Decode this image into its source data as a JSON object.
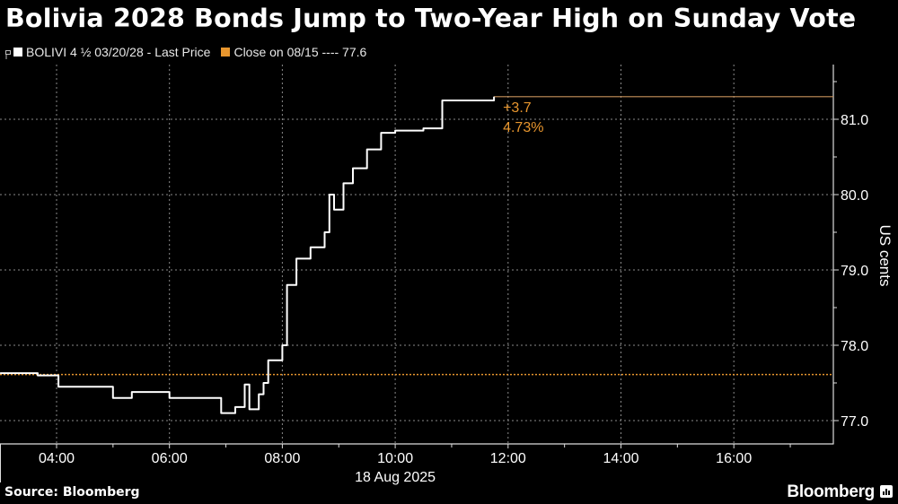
{
  "header": {
    "title": "Bolivia 2028 Bonds Jump to Two-Year High on Sunday Vote"
  },
  "legend": {
    "items": [
      {
        "label": "BOLIVI 4 ½  03/20/28 - Last Price",
        "color": "#ffffff"
      },
      {
        "label": "Close on 08/15 ---- 77.6",
        "color": "#e8962e"
      }
    ]
  },
  "annotation": {
    "change": "+3.7",
    "change_pct": "4.73%",
    "color": "#e8962e"
  },
  "footer": {
    "source": "Source: Bloomberg",
    "brand": "Bloomberg"
  },
  "colors": {
    "background": "#000000",
    "line": "#ffffff",
    "accent": "#e8962e",
    "grid": "#8a8a8a"
  },
  "chart_data": {
    "type": "line",
    "title": "Bolivia 2028 Bonds Jump to Two-Year High on Sunday Vote",
    "xlabel": "18 Aug 2025",
    "ylabel": "US cents",
    "x_tick_labels": [
      "04:00",
      "06:00",
      "08:00",
      "10:00",
      "12:00",
      "14:00",
      "16:00"
    ],
    "y_tick_labels": [
      "77.0",
      "78.0",
      "79.0",
      "80.0",
      "81.0"
    ],
    "ylim": [
      76.8,
      81.45
    ],
    "xlim": [
      "03:00",
      "17:45"
    ],
    "grid": true,
    "legend_position": "top-left",
    "reference_line": {
      "label": "Close on 08/15",
      "value": 77.6
    },
    "last_value": 81.3,
    "change": 3.7,
    "change_pct": 4.73,
    "series": [
      {
        "name": "BOLIVI 4 1/2 03/20/28 - Last Price",
        "x": [
          "03:00",
          "03:40",
          "04:00",
          "04:02",
          "04:30",
          "05:00",
          "05:20",
          "05:40",
          "06:00",
          "06:30",
          "06:55",
          "07:10",
          "07:20",
          "07:25",
          "07:35",
          "07:40",
          "07:45",
          "08:00",
          "08:05",
          "08:15",
          "08:30",
          "08:45",
          "08:50",
          "08:55",
          "09:05",
          "09:15",
          "09:30",
          "09:45",
          "10:00",
          "10:30",
          "10:50",
          "10:55",
          "11:30",
          "11:45"
        ],
        "values": [
          77.63,
          77.6,
          77.6,
          77.45,
          77.45,
          77.3,
          77.38,
          77.38,
          77.3,
          77.3,
          77.1,
          77.18,
          77.48,
          77.15,
          77.35,
          77.5,
          77.8,
          78.0,
          78.8,
          79.15,
          79.3,
          79.5,
          80.0,
          79.8,
          80.15,
          80.35,
          80.6,
          80.82,
          80.85,
          80.88,
          81.25,
          81.25,
          81.25,
          81.3
        ]
      }
    ]
  }
}
